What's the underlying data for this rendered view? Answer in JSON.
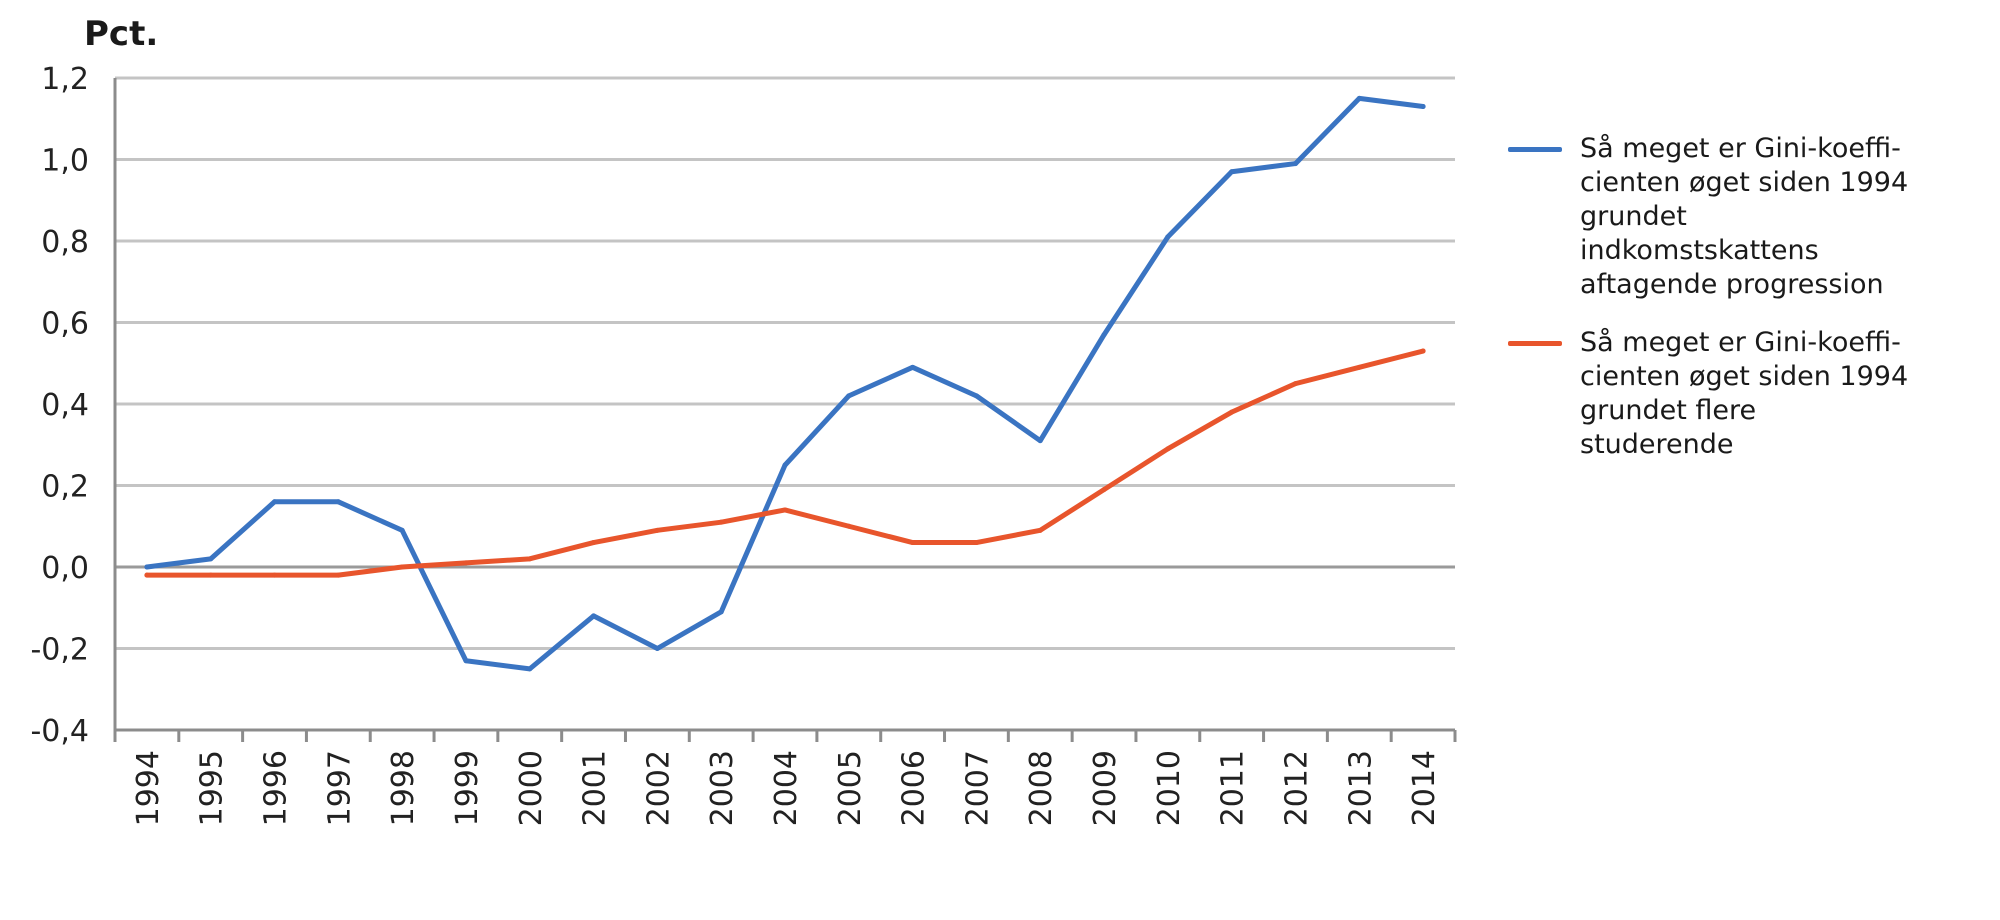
{
  "chart_data": {
    "type": "line",
    "ylabel": "Pct.",
    "x": [
      "1994",
      "1995",
      "1996",
      "1997",
      "1998",
      "1999",
      "2000",
      "2001",
      "2002",
      "2003",
      "2004",
      "2005",
      "2006",
      "2007",
      "2008",
      "2009",
      "2010",
      "2011",
      "2012",
      "2013",
      "2014"
    ],
    "ylim": [
      -0.4,
      1.2
    ],
    "yticks": [
      "1,2",
      "1,0",
      "0,8",
      "0,6",
      "0,4",
      "0,2",
      "0,0",
      "-0,2",
      "-0,4"
    ],
    "ytick_values": [
      1.2,
      1.0,
      0.8,
      0.6,
      0.4,
      0.2,
      0.0,
      -0.2,
      -0.4
    ],
    "grid": true,
    "legend_position": "right",
    "series": [
      {
        "name": "Så meget er Gini-koeffi-cienten øget siden 1994 grundet indkomstskattens aftagende progression",
        "color": "#3a74c2",
        "values": [
          0.0,
          0.02,
          0.16,
          0.16,
          0.09,
          -0.23,
          -0.25,
          -0.12,
          -0.2,
          -0.11,
          0.25,
          0.42,
          0.49,
          0.42,
          0.31,
          0.57,
          0.81,
          0.97,
          0.99,
          1.15,
          1.13
        ]
      },
      {
        "name": "Så meget er Gini-koeffi-cienten øget siden 1994 grundet flere studerende",
        "color": "#e8552c",
        "values": [
          -0.02,
          -0.02,
          -0.02,
          -0.02,
          0.0,
          0.01,
          0.02,
          0.06,
          0.09,
          0.11,
          0.14,
          0.1,
          0.06,
          0.06,
          0.09,
          0.19,
          0.29,
          0.38,
          0.45,
          0.49,
          0.53
        ]
      }
    ]
  }
}
